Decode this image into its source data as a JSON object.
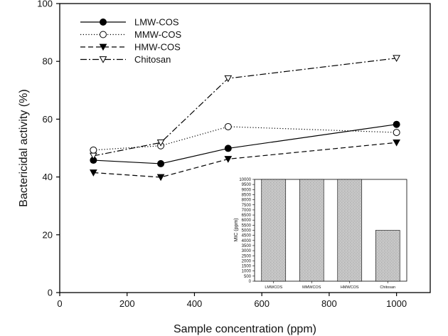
{
  "chart_data": [
    {
      "type": "line",
      "xlabel": "Sample concentration (ppm)",
      "ylabel": "Bactericidal activity (%)",
      "xlim": [
        0,
        1100
      ],
      "ylim": [
        0,
        100
      ],
      "xticks": [
        0,
        200,
        400,
        600,
        800,
        1000
      ],
      "yticks": [
        0,
        20,
        40,
        60,
        80,
        100
      ],
      "grid": false,
      "legend_position": "top-left",
      "x": [
        100,
        300,
        500,
        1000
      ],
      "series": [
        {
          "name": "LMW-COS",
          "values": [
            45.8,
            44.6,
            49.9,
            58.2
          ],
          "marker": "filled-circle",
          "line_style": "solid",
          "color": "#000000"
        },
        {
          "name": "MMW-COS",
          "values": [
            49.3,
            50.8,
            57.4,
            55.4
          ],
          "marker": "open-circle",
          "line_style": "dotted",
          "color": "#000000"
        },
        {
          "name": "HMW-COS",
          "values": [
            41.5,
            39.9,
            46.2,
            51.9
          ],
          "marker": "filled-triangle-down",
          "line_style": "dashed",
          "color": "#000000"
        },
        {
          "name": "Chitosan",
          "values": [
            47.3,
            51.9,
            74.1,
            81.1
          ],
          "marker": "open-triangle-down",
          "line_style": "dash-dot",
          "color": "#000000"
        }
      ]
    },
    {
      "type": "bar",
      "ylabel": "MIC (ppm)",
      "ylim": [
        0,
        10000
      ],
      "yticks": [
        0,
        500,
        1000,
        1500,
        2000,
        2500,
        3000,
        3500,
        4000,
        4500,
        5000,
        5500,
        6000,
        6500,
        7000,
        7500,
        8000,
        8500,
        9000,
        9500,
        10000
      ],
      "categories": [
        "LMWCOS",
        "MMWCOS",
        "HMWCOS",
        "Chitosan"
      ],
      "values": [
        10000,
        10000,
        10000,
        5000
      ],
      "bar_color": "#c4c4c4"
    }
  ]
}
